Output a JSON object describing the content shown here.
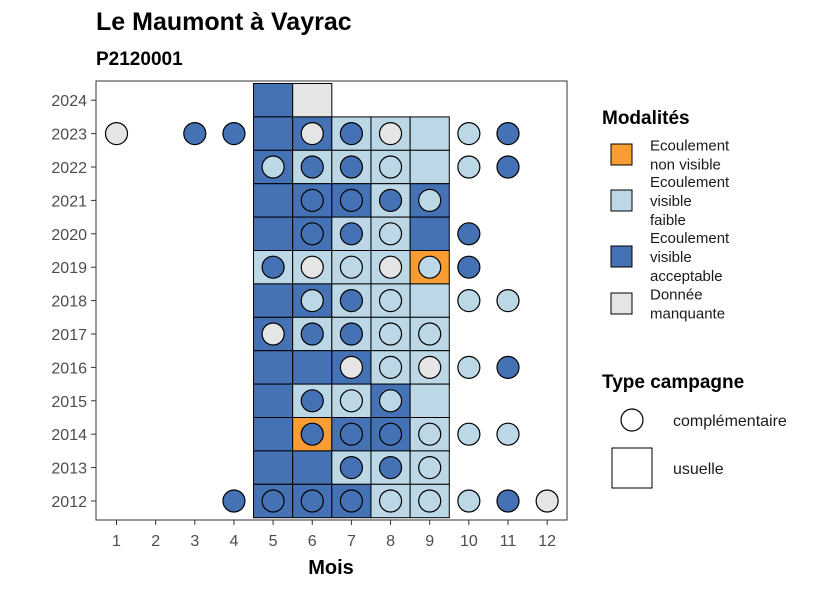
{
  "chart_data": {
    "type": "heatmap",
    "title": "Le Maumont à Vayrac",
    "subtitle": "P2120001",
    "xlabel": "Mois",
    "ylabel": "",
    "x_ticks": [
      1,
      2,
      3,
      4,
      5,
      6,
      7,
      8,
      9,
      10,
      11,
      12
    ],
    "y_ticks": [
      2012,
      2013,
      2014,
      2015,
      2016,
      2017,
      2018,
      2019,
      2020,
      2021,
      2022,
      2023,
      2024
    ],
    "grid": false,
    "legend_position": "right",
    "modalites": {
      "title": "Modalités",
      "items": [
        {
          "key": "nv",
          "label_lines": [
            "Ecoulement",
            "non visible"
          ],
          "color": "#f89c33"
        },
        {
          "key": "vf",
          "label_lines": [
            "Ecoulement",
            "visible",
            "faible"
          ],
          "color": "#bcd7e6"
        },
        {
          "key": "va",
          "label_lines": [
            "Ecoulement",
            "visible",
            "acceptable"
          ],
          "color": "#4472b4"
        },
        {
          "key": "dm",
          "label_lines": [
            "Donnée",
            "manquante"
          ],
          "color": "#e5e5e5"
        }
      ]
    },
    "type_campagne": {
      "title": "Type campagne",
      "items": [
        {
          "key": "complementaire",
          "label": "complémentaire",
          "shape": "circle"
        },
        {
          "key": "usuelle",
          "label": "usuelle",
          "shape": "square"
        }
      ]
    },
    "usuelle": [
      {
        "year": 2024,
        "month": 5,
        "value": "va"
      },
      {
        "year": 2024,
        "month": 6,
        "value": "dm"
      },
      {
        "year": 2023,
        "month": 5,
        "value": "va"
      },
      {
        "year": 2023,
        "month": 6,
        "value": "va"
      },
      {
        "year": 2023,
        "month": 7,
        "value": "vf"
      },
      {
        "year": 2023,
        "month": 8,
        "value": "vf"
      },
      {
        "year": 2023,
        "month": 9,
        "value": "vf"
      },
      {
        "year": 2022,
        "month": 5,
        "value": "va"
      },
      {
        "year": 2022,
        "month": 6,
        "value": "vf"
      },
      {
        "year": 2022,
        "month": 7,
        "value": "vf"
      },
      {
        "year": 2022,
        "month": 8,
        "value": "vf"
      },
      {
        "year": 2022,
        "month": 9,
        "value": "vf"
      },
      {
        "year": 2021,
        "month": 5,
        "value": "va"
      },
      {
        "year": 2021,
        "month": 6,
        "value": "va"
      },
      {
        "year": 2021,
        "month": 7,
        "value": "va"
      },
      {
        "year": 2021,
        "month": 8,
        "value": "vf"
      },
      {
        "year": 2021,
        "month": 9,
        "value": "va"
      },
      {
        "year": 2020,
        "month": 5,
        "value": "va"
      },
      {
        "year": 2020,
        "month": 6,
        "value": "va"
      },
      {
        "year": 2020,
        "month": 7,
        "value": "vf"
      },
      {
        "year": 2020,
        "month": 8,
        "value": "vf"
      },
      {
        "year": 2020,
        "month": 9,
        "value": "va"
      },
      {
        "year": 2019,
        "month": 5,
        "value": "vf"
      },
      {
        "year": 2019,
        "month": 6,
        "value": "vf"
      },
      {
        "year": 2019,
        "month": 7,
        "value": "vf"
      },
      {
        "year": 2019,
        "month": 8,
        "value": "vf"
      },
      {
        "year": 2019,
        "month": 9,
        "value": "nv"
      },
      {
        "year": 2018,
        "month": 5,
        "value": "va"
      },
      {
        "year": 2018,
        "month": 6,
        "value": "va"
      },
      {
        "year": 2018,
        "month": 7,
        "value": "vf"
      },
      {
        "year": 2018,
        "month": 8,
        "value": "vf"
      },
      {
        "year": 2018,
        "month": 9,
        "value": "vf"
      },
      {
        "year": 2017,
        "month": 5,
        "value": "va"
      },
      {
        "year": 2017,
        "month": 6,
        "value": "vf"
      },
      {
        "year": 2017,
        "month": 7,
        "value": "vf"
      },
      {
        "year": 2017,
        "month": 8,
        "value": "vf"
      },
      {
        "year": 2017,
        "month": 9,
        "value": "vf"
      },
      {
        "year": 2016,
        "month": 5,
        "value": "va"
      },
      {
        "year": 2016,
        "month": 6,
        "value": "va"
      },
      {
        "year": 2016,
        "month": 7,
        "value": "va"
      },
      {
        "year": 2016,
        "month": 8,
        "value": "vf"
      },
      {
        "year": 2016,
        "month": 9,
        "value": "vf"
      },
      {
        "year": 2015,
        "month": 5,
        "value": "va"
      },
      {
        "year": 2015,
        "month": 6,
        "value": "vf"
      },
      {
        "year": 2015,
        "month": 7,
        "value": "vf"
      },
      {
        "year": 2015,
        "month": 8,
        "value": "va"
      },
      {
        "year": 2015,
        "month": 9,
        "value": "vf"
      },
      {
        "year": 2014,
        "month": 5,
        "value": "va"
      },
      {
        "year": 2014,
        "month": 6,
        "value": "nv"
      },
      {
        "year": 2014,
        "month": 7,
        "value": "va"
      },
      {
        "year": 2014,
        "month": 8,
        "value": "va"
      },
      {
        "year": 2014,
        "month": 9,
        "value": "vf"
      },
      {
        "year": 2013,
        "month": 5,
        "value": "va"
      },
      {
        "year": 2013,
        "month": 6,
        "value": "va"
      },
      {
        "year": 2013,
        "month": 7,
        "value": "vf"
      },
      {
        "year": 2013,
        "month": 8,
        "value": "vf"
      },
      {
        "year": 2013,
        "month": 9,
        "value": "vf"
      },
      {
        "year": 2012,
        "month": 5,
        "value": "va"
      },
      {
        "year": 2012,
        "month": 6,
        "value": "va"
      },
      {
        "year": 2012,
        "month": 7,
        "value": "va"
      },
      {
        "year": 2012,
        "month": 8,
        "value": "vf"
      },
      {
        "year": 2012,
        "month": 9,
        "value": "vf"
      }
    ],
    "complementaire": [
      {
        "year": 2023,
        "month": 1,
        "value": "dm"
      },
      {
        "year": 2023,
        "month": 3,
        "value": "va"
      },
      {
        "year": 2023,
        "month": 4,
        "value": "va"
      },
      {
        "year": 2023,
        "month": 6,
        "value": "dm"
      },
      {
        "year": 2023,
        "month": 7,
        "value": "va"
      },
      {
        "year": 2023,
        "month": 8,
        "value": "dm"
      },
      {
        "year": 2023,
        "month": 10,
        "value": "vf"
      },
      {
        "year": 2023,
        "month": 11,
        "value": "va"
      },
      {
        "year": 2022,
        "month": 5,
        "value": "vf"
      },
      {
        "year": 2022,
        "month": 6,
        "value": "va"
      },
      {
        "year": 2022,
        "month": 7,
        "value": "va"
      },
      {
        "year": 2022,
        "month": 8,
        "value": "vf"
      },
      {
        "year": 2022,
        "month": 10,
        "value": "vf"
      },
      {
        "year": 2022,
        "month": 11,
        "value": "va"
      },
      {
        "year": 2021,
        "month": 6,
        "value": "va"
      },
      {
        "year": 2021,
        "month": 7,
        "value": "va"
      },
      {
        "year": 2021,
        "month": 8,
        "value": "va"
      },
      {
        "year": 2021,
        "month": 9,
        "value": "vf"
      },
      {
        "year": 2020,
        "month": 6,
        "value": "va"
      },
      {
        "year": 2020,
        "month": 7,
        "value": "va"
      },
      {
        "year": 2020,
        "month": 8,
        "value": "vf"
      },
      {
        "year": 2020,
        "month": 10,
        "value": "va"
      },
      {
        "year": 2019,
        "month": 5,
        "value": "va"
      },
      {
        "year": 2019,
        "month": 6,
        "value": "dm"
      },
      {
        "year": 2019,
        "month": 7,
        "value": "vf"
      },
      {
        "year": 2019,
        "month": 8,
        "value": "dm"
      },
      {
        "year": 2019,
        "month": 9,
        "value": "vf"
      },
      {
        "year": 2019,
        "month": 10,
        "value": "va"
      },
      {
        "year": 2018,
        "month": 6,
        "value": "vf"
      },
      {
        "year": 2018,
        "month": 7,
        "value": "va"
      },
      {
        "year": 2018,
        "month": 8,
        "value": "vf"
      },
      {
        "year": 2018,
        "month": 10,
        "value": "vf"
      },
      {
        "year": 2018,
        "month": 11,
        "value": "vf"
      },
      {
        "year": 2017,
        "month": 5,
        "value": "dm"
      },
      {
        "year": 2017,
        "month": 6,
        "value": "va"
      },
      {
        "year": 2017,
        "month": 7,
        "value": "va"
      },
      {
        "year": 2017,
        "month": 8,
        "value": "vf"
      },
      {
        "year": 2017,
        "month": 9,
        "value": "vf"
      },
      {
        "year": 2016,
        "month": 7,
        "value": "dm"
      },
      {
        "year": 2016,
        "month": 8,
        "value": "vf"
      },
      {
        "year": 2016,
        "month": 9,
        "value": "dm"
      },
      {
        "year": 2016,
        "month": 10,
        "value": "vf"
      },
      {
        "year": 2016,
        "month": 11,
        "value": "va"
      },
      {
        "year": 2015,
        "month": 6,
        "value": "va"
      },
      {
        "year": 2015,
        "month": 7,
        "value": "vf"
      },
      {
        "year": 2015,
        "month": 8,
        "value": "vf"
      },
      {
        "year": 2014,
        "month": 6,
        "value": "va"
      },
      {
        "year": 2014,
        "month": 7,
        "value": "va"
      },
      {
        "year": 2014,
        "month": 8,
        "value": "va"
      },
      {
        "year": 2014,
        "month": 9,
        "value": "vf"
      },
      {
        "year": 2014,
        "month": 10,
        "value": "vf"
      },
      {
        "year": 2014,
        "month": 11,
        "value": "vf"
      },
      {
        "year": 2013,
        "month": 7,
        "value": "va"
      },
      {
        "year": 2013,
        "month": 8,
        "value": "va"
      },
      {
        "year": 2013,
        "month": 9,
        "value": "vf"
      },
      {
        "year": 2012,
        "month": 4,
        "value": "va"
      },
      {
        "year": 2012,
        "month": 5,
        "value": "va"
      },
      {
        "year": 2012,
        "month": 6,
        "value": "va"
      },
      {
        "year": 2012,
        "month": 7,
        "value": "va"
      },
      {
        "year": 2012,
        "month": 8,
        "value": "vf"
      },
      {
        "year": 2012,
        "month": 9,
        "value": "vf"
      },
      {
        "year": 2012,
        "month": 10,
        "value": "vf"
      },
      {
        "year": 2012,
        "month": 11,
        "value": "va"
      },
      {
        "year": 2012,
        "month": 12,
        "value": "dm"
      }
    ]
  }
}
